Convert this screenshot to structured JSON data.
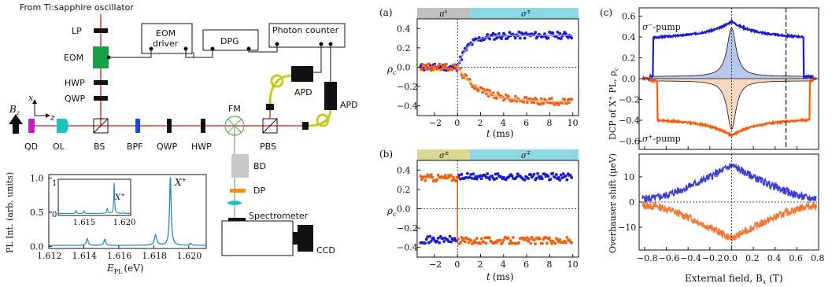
{
  "setup": {
    "source_label": "From Ti:sapphire oscillator",
    "components": {
      "lp": "LP",
      "eom": "EOM",
      "hwp_top": "HWP",
      "qwp_top": "QWP",
      "qd": "QD",
      "ol": "OL",
      "bs": "BS",
      "bpf": "BPF",
      "qwp": "QWP",
      "hwp": "HWP",
      "fm": "FM",
      "pbs": "PBS",
      "bd": "BD",
      "dp": "DP",
      "apd1": "APD",
      "apd2": "APD",
      "spectrometer": "Spectrometer",
      "ccd": "CCD",
      "eom_driver_1": "EOM",
      "eom_driver_2": "driver",
      "dpg": "DPG",
      "photon_counter": "Photon counter"
    },
    "axes_labels": {
      "bz": "B",
      "bz_sub": "z",
      "x": "x",
      "z": "z"
    },
    "colors": {
      "laser": "#e03c3c",
      "eom": "#16a04a",
      "qd": "#c020c0",
      "ol": "#20c0c0",
      "bpf": "#2040e0",
      "fiber": "#c8c820",
      "dp": "#f09010",
      "bd": "#c8c8c8"
    }
  },
  "pl_spectrum": {
    "ylabel": "PL Int. (arb. units)",
    "xlabel_main": "E",
    "xlabel_sub": "PL",
    "xlabel_unit": "(eV)",
    "peak_label": "X",
    "peak_sup": "+",
    "chart_data": {
      "type": "line",
      "xlim": [
        1.612,
        1.621
      ],
      "ylim": [
        -0.03,
        1.05
      ],
      "xticks": [
        "1.612",
        "1.614",
        "1.616",
        "1.618",
        "1.620"
      ],
      "yticks": [
        "0.0",
        "0.5",
        "1.0"
      ],
      "peaks": [
        {
          "x": 1.6142,
          "h": 0.1,
          "w": 6e-05
        },
        {
          "x": 1.6152,
          "h": 0.09,
          "w": 6e-05
        },
        {
          "x": 1.6181,
          "h": 0.15,
          "w": 8e-05
        },
        {
          "x": 1.61895,
          "h": 1.0,
          "w": 5.5e-05
        },
        {
          "x": 1.6201,
          "h": 0.03,
          "w": 6e-05
        }
      ],
      "baseline": 0.015
    },
    "inset": {
      "xticks": [
        "1.615",
        "1.620"
      ],
      "yticks": [
        "0",
        "1"
      ],
      "peak_label": "X",
      "peak_sup": "+"
    }
  },
  "panel_a": {
    "label": "(a)",
    "band_left": "π",
    "band_left_sup": "x",
    "band_right": "σ",
    "band_right_sup": "±",
    "ylabel": "ρ",
    "ylabel_sub": "c",
    "xlabel": "t",
    "xlabel_unit": "(ms)",
    "chart_data": {
      "type": "scatter",
      "xlim": [
        -3.5,
        10.5
      ],
      "ylim": [
        -0.5,
        0.5
      ],
      "xticks": [
        "−2",
        "0",
        "2",
        "4",
        "6",
        "8",
        "10"
      ],
      "yticks": [
        "−0.4",
        "−0.2",
        "0.0",
        "0.2",
        "0.4"
      ],
      "series": [
        {
          "color": "#1a1ad0",
          "fit_color": "#8a8ae8",
          "before": 0.0,
          "after": 0.33,
          "tau": 0.9
        },
        {
          "color": "#f06010",
          "fit_color": "#f0b080",
          "before": 0.0,
          "after": -0.36,
          "tau": 2.0
        }
      ]
    }
  },
  "panel_b": {
    "label": "(b)",
    "band_left": "σ",
    "band_left_sup": "±",
    "band_right": "σ",
    "band_right_sup": "∓",
    "ylabel": "ρ",
    "ylabel_sub": "c",
    "xlabel": "t",
    "xlabel_unit": "(ms)",
    "chart_data": {
      "type": "scatter",
      "xlim": [
        -3.5,
        10.5
      ],
      "ylim": [
        -0.5,
        0.5
      ],
      "xticks": [
        "−2",
        "0",
        "2",
        "4",
        "6",
        "8",
        "10"
      ],
      "yticks": [
        "−0.4",
        "−0.2",
        "0.0",
        "0.2",
        "0.4"
      ],
      "series": [
        {
          "color": "#1a1ad0",
          "before": -0.32,
          "after": 0.33
        },
        {
          "color": "#f06010",
          "before": 0.32,
          "after": -0.33
        }
      ]
    }
  },
  "panel_c": {
    "label": "(c)",
    "ylabel_top": "DCP of X",
    "ylabel_top_sup": "+",
    "ylabel_top_tail": " PL, ρ",
    "ylabel_top_sub": "c",
    "ylabel_bottom": "Overhauser shift (μeV)",
    "xlabel": "External field, B",
    "xlabel_sub": "x",
    "xlabel_unit": " (T)",
    "annot_minus": "σ",
    "annot_minus_sup": "−",
    "annot_minus_tail": "-pump",
    "annot_plus": "σ",
    "annot_plus_sup": "+",
    "annot_plus_tail": "-pump",
    "chart_data": {
      "type": "line",
      "xlim": [
        -0.85,
        0.8
      ],
      "ylim_top": [
        -0.68,
        0.68
      ],
      "ylim_bottom": [
        -19,
        19
      ],
      "xticks": [
        "−0.8",
        "−0.6",
        "−0.4",
        "−0.2",
        "0.0",
        "0.2",
        "0.4",
        "0.6",
        "0.8"
      ],
      "yticks_top": [
        "−0.6",
        "−0.4",
        "−0.2",
        "0.0",
        "0.2",
        "0.4",
        "0.6"
      ],
      "yticks_bottom": [
        "−10",
        "0",
        "10"
      ],
      "dashed_x": 0.5,
      "dcp_peak": 0.55,
      "dcp_edge": 0.43,
      "shift_peak": 13,
      "colors": {
        "minus": "#1a1ad0",
        "plus": "#f06010",
        "minus_fill": "#b8c8ec",
        "plus_fill": "#f6d8c0"
      }
    }
  }
}
